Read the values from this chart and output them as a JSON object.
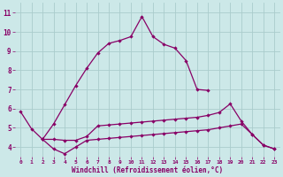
{
  "bg_color": "#cce8e8",
  "grid_color": "#aacccc",
  "line_color": "#880066",
  "xlabel": "Windchill (Refroidissement éolien,°C)",
  "xlabel_color": "#880066",
  "tick_color": "#880066",
  "ylim": [
    3.5,
    11.5
  ],
  "xlim": [
    -0.5,
    23.5
  ],
  "yticks": [
    4,
    5,
    6,
    7,
    8,
    9,
    10,
    11
  ],
  "xticks": [
    0,
    1,
    2,
    3,
    4,
    5,
    6,
    7,
    8,
    9,
    10,
    11,
    12,
    13,
    14,
    15,
    16,
    17,
    18,
    19,
    20,
    21,
    22,
    23
  ],
  "line1_x": [
    0,
    1,
    2,
    3,
    4,
    5,
    6,
    7,
    8,
    9,
    10,
    11,
    12,
    13,
    14,
    15,
    16,
    17,
    18,
    19,
    20,
    21,
    22,
    23
  ],
  "line1_y": [
    5.85,
    4.95,
    4.4,
    5.2,
    6.2,
    7.2,
    8.1,
    8.9,
    9.4,
    9.55,
    9.75,
    10.8,
    9.75,
    9.35,
    9.15,
    8.5,
    7.0,
    6.95,
    null,
    null,
    null,
    null,
    null,
    null
  ],
  "line2_x": [
    0,
    1,
    2,
    3,
    4,
    5,
    6,
    7,
    8,
    9,
    10,
    11,
    12,
    13,
    14,
    15,
    16,
    17,
    18,
    19,
    20,
    21,
    22,
    23
  ],
  "line2_y": [
    null,
    null,
    4.4,
    4.4,
    4.35,
    4.35,
    4.55,
    5.1,
    5.15,
    5.2,
    5.25,
    5.3,
    5.35,
    5.4,
    5.45,
    5.5,
    5.55,
    5.65,
    5.8,
    6.25,
    5.35,
    4.65,
    4.1,
    3.9
  ],
  "line3_x": [
    0,
    1,
    2,
    3,
    4,
    5,
    6,
    7,
    8,
    9,
    10,
    11,
    12,
    13,
    14,
    15,
    16,
    17,
    18,
    19,
    20,
    21,
    22,
    23
  ],
  "line3_y": [
    null,
    null,
    4.4,
    3.9,
    3.65,
    4.0,
    4.35,
    4.4,
    4.45,
    4.5,
    4.55,
    4.6,
    4.65,
    4.7,
    4.75,
    4.8,
    4.85,
    4.9,
    5.0,
    5.1,
    5.2,
    4.65,
    4.1,
    3.9
  ]
}
